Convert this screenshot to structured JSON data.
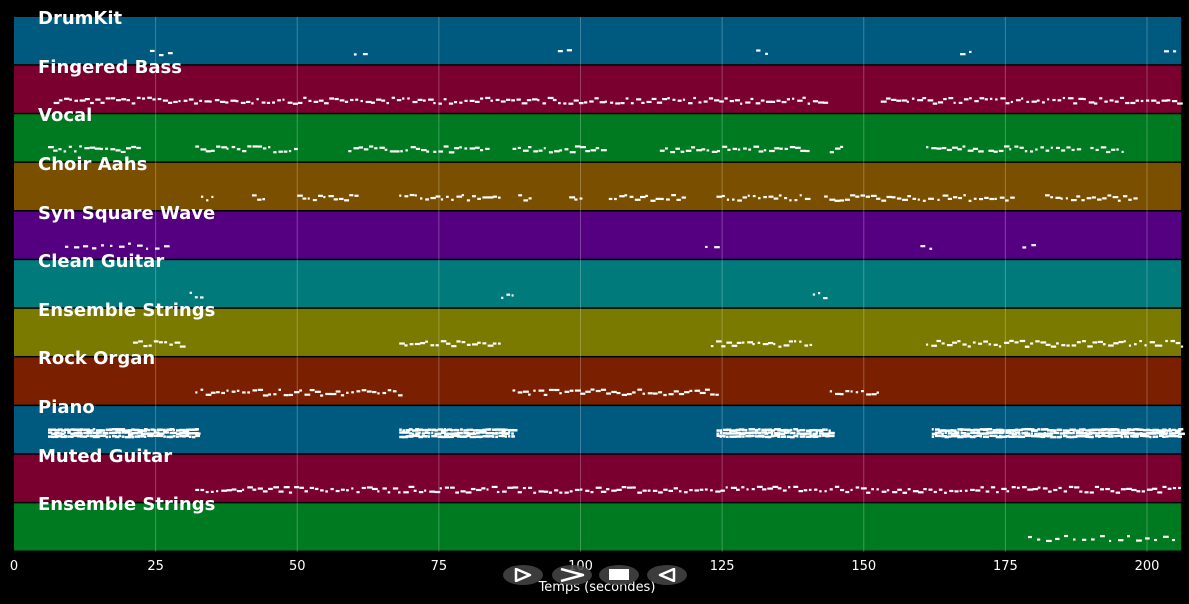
{
  "chart_data": {
    "type": "piano-roll",
    "xlabel": "Temps (secondes)",
    "xlim": [
      0,
      206
    ],
    "x_ticks": [
      0,
      25,
      50,
      75,
      100,
      125,
      150,
      175,
      200
    ],
    "grid": true,
    "tracks": [
      {
        "name": "DrumKit",
        "color": "#005a80",
        "segments": [
          [
            24,
            28,
            "sparse"
          ],
          [
            60,
            63,
            "sparse"
          ],
          [
            96,
            99,
            "sparse"
          ],
          [
            131,
            134,
            "sparse"
          ],
          [
            167,
            170,
            "sparse"
          ],
          [
            203,
            206,
            "sparse"
          ]
        ]
      },
      {
        "name": "Fingered Bass",
        "color": "#7a0030",
        "segments": [
          [
            7,
            143,
            "medium"
          ],
          [
            153,
            206,
            "medium"
          ]
        ]
      },
      {
        "name": "Vocal",
        "color": "#007a20",
        "segments": [
          [
            6,
            22,
            "medium"
          ],
          [
            32,
            50,
            "medium"
          ],
          [
            59,
            73,
            "medium"
          ],
          [
            74,
            84,
            "medium"
          ],
          [
            88,
            104,
            "medium"
          ],
          [
            114,
            140,
            "medium"
          ],
          [
            144,
            146,
            "medium"
          ],
          [
            161,
            171,
            "medium"
          ],
          [
            172,
            188,
            "medium"
          ],
          [
            190,
            196,
            "medium"
          ]
        ]
      },
      {
        "name": "Choir Aahs",
        "color": "#7a5000",
        "segments": [
          [
            33,
            35,
            "medium"
          ],
          [
            42,
            44,
            "medium"
          ],
          [
            50,
            61,
            "medium"
          ],
          [
            68,
            86,
            "medium"
          ],
          [
            89,
            91,
            "medium"
          ],
          [
            98,
            100,
            "medium"
          ],
          [
            105,
            118,
            "medium"
          ],
          [
            124,
            140,
            "medium"
          ],
          [
            143,
            162,
            "medium"
          ],
          [
            163,
            176,
            "medium"
          ],
          [
            182,
            198,
            "medium"
          ]
        ]
      },
      {
        "name": "Syn Square Wave",
        "color": "#550080",
        "segments": [
          [
            9,
            28,
            "sparse"
          ],
          [
            122,
            124,
            "sparse"
          ],
          [
            160,
            162,
            "sparse"
          ],
          [
            178,
            181,
            "sparse"
          ]
        ]
      },
      {
        "name": "Clean Guitar",
        "color": "#007a7a",
        "segments": [
          [
            31,
            33,
            "medium"
          ],
          [
            86,
            88,
            "medium"
          ],
          [
            141,
            143,
            "medium"
          ]
        ]
      },
      {
        "name": "Ensemble Strings",
        "color": "#7a7a00",
        "segments": [
          [
            21,
            30,
            "medium"
          ],
          [
            68,
            86,
            "medium"
          ],
          [
            123,
            141,
            "medium"
          ],
          [
            161,
            206,
            "medium"
          ]
        ]
      },
      {
        "name": "Rock Organ",
        "color": "#7a2000",
        "segments": [
          [
            32,
            68,
            "medium"
          ],
          [
            88,
            124,
            "medium"
          ],
          [
            144,
            153,
            "medium"
          ]
        ]
      },
      {
        "name": "Piano",
        "color": "#005a80",
        "segments": [
          [
            6,
            32,
            "dense"
          ],
          [
            68,
            88,
            "dense"
          ],
          [
            124,
            144,
            "dense"
          ],
          [
            162,
            206,
            "dense"
          ]
        ]
      },
      {
        "name": "Muted Guitar",
        "color": "#7a0030",
        "segments": [
          [
            32,
            206,
            "medium"
          ]
        ]
      },
      {
        "name": "Ensemble Strings",
        "color": "#007a20",
        "segments": [
          [
            179,
            206,
            "sparse"
          ]
        ]
      }
    ]
  },
  "controls": [
    {
      "name": "play-button",
      "icon": "play-icon"
    },
    {
      "name": "forward-button",
      "icon": "fast-forward-icon"
    },
    {
      "name": "stop-button",
      "icon": "stop-icon"
    },
    {
      "name": "rewind-button",
      "icon": "rewind-icon"
    }
  ]
}
